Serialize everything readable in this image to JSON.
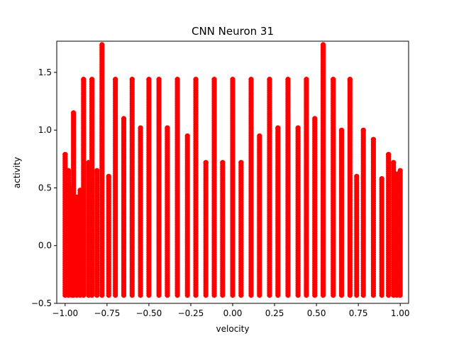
{
  "chart_data": {
    "type": "scatter",
    "title": "CNN Neuron 31",
    "xlabel": "velocity",
    "ylabel": "activity",
    "xlim": [
      -1.05,
      1.05
    ],
    "ylim": [
      -0.5,
      1.77
    ],
    "xticks": [
      -1.0,
      -0.75,
      -0.5,
      -0.25,
      0.0,
      0.25,
      0.5,
      0.75,
      1.0
    ],
    "xtick_labels": [
      "−1.00",
      "−0.75",
      "−0.50",
      "−0.25",
      "0.00",
      "0.25",
      "0.50",
      "0.75",
      "1.00"
    ],
    "yticks": [
      -0.5,
      0.0,
      0.5,
      1.0,
      1.5
    ],
    "ytick_labels": [
      "−0.5",
      "0.0",
      "0.5",
      "1.0",
      "1.5"
    ],
    "grid": false,
    "marker_color": "#ff0000",
    "series": [
      {
        "columns": [
          {
            "x": -1.0,
            "y_min": -0.43,
            "y_max": 0.79
          },
          {
            "x": -0.98,
            "y_min": -0.43,
            "y_max": 0.65
          },
          {
            "x": -0.96,
            "y_min": -0.43,
            "y_max": 0.5
          },
          {
            "x": -0.95,
            "y_min": -0.43,
            "y_max": 1.15
          },
          {
            "x": -0.93,
            "y_min": -0.43,
            "y_max": 0.42
          },
          {
            "x": -0.91,
            "y_min": -0.43,
            "y_max": 0.48
          },
          {
            "x": -0.89,
            "y_min": -0.43,
            "y_max": 1.44
          },
          {
            "x": -0.86,
            "y_min": -0.43,
            "y_max": 0.72
          },
          {
            "x": -0.84,
            "y_min": -0.43,
            "y_max": 1.44
          },
          {
            "x": -0.81,
            "y_min": -0.43,
            "y_max": 0.65
          },
          {
            "x": -0.78,
            "y_min": -0.43,
            "y_max": 1.74
          },
          {
            "x": -0.74,
            "y_min": -0.43,
            "y_max": 0.6
          },
          {
            "x": -0.7,
            "y_min": -0.43,
            "y_max": 1.44
          },
          {
            "x": -0.65,
            "y_min": -0.43,
            "y_max": 1.1
          },
          {
            "x": -0.6,
            "y_min": -0.43,
            "y_max": 1.44
          },
          {
            "x": -0.55,
            "y_min": -0.43,
            "y_max": 1.02
          },
          {
            "x": -0.5,
            "y_min": -0.43,
            "y_max": 1.44
          },
          {
            "x": -0.44,
            "y_min": -0.43,
            "y_max": 1.44
          },
          {
            "x": -0.39,
            "y_min": -0.43,
            "y_max": 1.02
          },
          {
            "x": -0.33,
            "y_min": -0.43,
            "y_max": 1.44
          },
          {
            "x": -0.27,
            "y_min": -0.43,
            "y_max": 0.95
          },
          {
            "x": -0.22,
            "y_min": -0.43,
            "y_max": 1.44
          },
          {
            "x": -0.16,
            "y_min": -0.43,
            "y_max": 0.72
          },
          {
            "x": -0.11,
            "y_min": -0.43,
            "y_max": 1.44
          },
          {
            "x": -0.06,
            "y_min": -0.43,
            "y_max": 0.72
          },
          {
            "x": 0.0,
            "y_min": -0.43,
            "y_max": 1.44
          },
          {
            "x": 0.05,
            "y_min": -0.43,
            "y_max": 0.72
          },
          {
            "x": 0.11,
            "y_min": -0.43,
            "y_max": 1.44
          },
          {
            "x": 0.16,
            "y_min": -0.43,
            "y_max": 0.95
          },
          {
            "x": 0.22,
            "y_min": -0.43,
            "y_max": 1.44
          },
          {
            "x": 0.27,
            "y_min": -0.43,
            "y_max": 1.02
          },
          {
            "x": 0.33,
            "y_min": -0.43,
            "y_max": 1.44
          },
          {
            "x": 0.39,
            "y_min": -0.43,
            "y_max": 1.02
          },
          {
            "x": 0.44,
            "y_min": -0.43,
            "y_max": 1.44
          },
          {
            "x": 0.49,
            "y_min": -0.43,
            "y_max": 1.1
          },
          {
            "x": 0.54,
            "y_min": -0.43,
            "y_max": 1.74
          },
          {
            "x": 0.6,
            "y_min": -0.43,
            "y_max": 1.44
          },
          {
            "x": 0.65,
            "y_min": -0.43,
            "y_max": 1.0
          },
          {
            "x": 0.7,
            "y_min": -0.43,
            "y_max": 1.44
          },
          {
            "x": 0.74,
            "y_min": -0.43,
            "y_max": 0.6
          },
          {
            "x": 0.78,
            "y_min": -0.43,
            "y_max": 1.0
          },
          {
            "x": 0.84,
            "y_min": -0.43,
            "y_max": 0.92
          },
          {
            "x": 0.89,
            "y_min": -0.43,
            "y_max": 0.58
          },
          {
            "x": 0.93,
            "y_min": -0.43,
            "y_max": 0.79
          },
          {
            "x": 0.96,
            "y_min": -0.43,
            "y_max": 0.72
          },
          {
            "x": 0.98,
            "y_min": -0.43,
            "y_max": 0.62
          },
          {
            "x": 1.0,
            "y_min": -0.43,
            "y_max": 0.65
          }
        ]
      }
    ]
  }
}
